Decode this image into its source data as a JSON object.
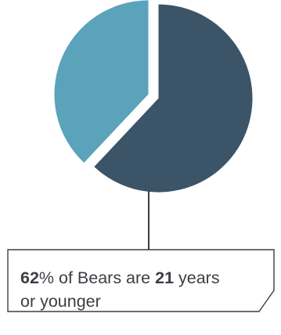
{
  "chart_data": {
    "type": "pie",
    "slices": [
      {
        "value": 62,
        "color": "#3b5468"
      },
      {
        "value": 38,
        "color": "#5aa3bb"
      }
    ],
    "title": "",
    "legend": "none"
  },
  "callout": {
    "pct_value": "62",
    "pct_suffix": "% of Bears are ",
    "age_value": "21",
    "line1_suffix": " years",
    "line2": "or younger"
  },
  "colors": {
    "outline": "#3a3f44"
  }
}
